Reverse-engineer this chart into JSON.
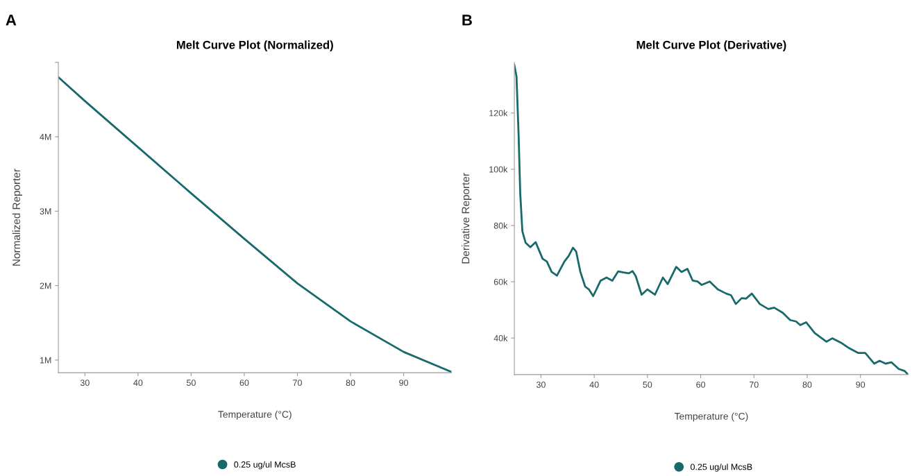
{
  "chart_data": [
    {
      "type": "line",
      "title": "Melt Curve Plot (Normalized)",
      "xlabel": "Temperature (°C)",
      "ylabel": "Normalized Reporter",
      "annotations": [
        "A"
      ],
      "xlim": [
        25,
        99
      ],
      "xticks": [
        30,
        40,
        50,
        60,
        70,
        80,
        90
      ],
      "ylim": [
        830000,
        5000000
      ],
      "yticks": [
        {
          "value": 1000000,
          "label": "1M"
        },
        {
          "value": 2000000,
          "label": "2M"
        },
        {
          "value": 3000000,
          "label": "3M"
        },
        {
          "value": 4000000,
          "label": "4M"
        },
        {
          "value": 5000000,
          "label": null
        }
      ],
      "grid": false,
      "legend": "bottom",
      "marker": "none",
      "line_style": "solid",
      "series": [
        {
          "name": "0.25 ug/ul McsB",
          "color": "#17696a",
          "x": [
            25,
            30,
            40,
            50,
            60,
            70,
            80,
            90,
            99
          ],
          "values": [
            4800000,
            4480000,
            3860000,
            3240000,
            2630000,
            2030000,
            1520000,
            1110000,
            840000
          ]
        }
      ]
    },
    {
      "type": "line",
      "title": "Melt Curve Plot (Derivative)",
      "xlabel": "Temperature (°C)",
      "ylabel": "Derivative Reporter",
      "annotations": [
        "B"
      ],
      "xlim": [
        25,
        99
      ],
      "xticks": [
        30,
        40,
        50,
        60,
        70,
        80,
        90
      ],
      "ylim": [
        27000,
        138000
      ],
      "yticks": [
        {
          "value": 40000,
          "label": "40k"
        },
        {
          "value": 60000,
          "label": "60k"
        },
        {
          "value": 80000,
          "label": "80k"
        },
        {
          "value": 100000,
          "label": "100k"
        },
        {
          "value": 120000,
          "label": "120k"
        }
      ],
      "grid": false,
      "legend": "bottom",
      "marker": "none",
      "line_style": "solid",
      "series": [
        {
          "name": "0.25 ug/ul McsB",
          "color": "#17696a",
          "x": [
            25,
            25.4,
            25.8,
            26.1,
            26.5,
            27.1,
            28.0,
            29.0,
            30.3,
            31.1,
            32.0,
            33.0,
            34.4,
            35.2,
            36.0,
            36.6,
            37.4,
            38.3,
            39.0,
            39.8,
            41.2,
            42.3,
            43.4,
            44.5,
            45.5,
            46.5,
            47.2,
            47.8,
            48.9,
            50.0,
            51.4,
            52.9,
            53.8,
            55.4,
            56.4,
            57.5,
            58.5,
            59.4,
            60.2,
            61.7,
            63.2,
            64.8,
            65.7,
            66.6,
            67.7,
            68.5,
            69.6,
            71.1,
            72.7,
            73.8,
            75.4,
            76.8,
            77.9,
            78.7,
            79.8,
            81.4,
            83.6,
            84.7,
            86.3,
            87.7,
            89.6,
            90.9,
            92.6,
            93.6,
            94.7,
            95.8,
            97.2,
            98.3,
            98.8
          ],
          "values": [
            137000,
            133000,
            112000,
            91500,
            78000,
            73900,
            72300,
            74100,
            68200,
            67200,
            63500,
            62200,
            67200,
            69200,
            72100,
            70800,
            63500,
            58300,
            57300,
            54900,
            60400,
            61500,
            60400,
            63700,
            63300,
            63000,
            63800,
            62000,
            55400,
            57300,
            55400,
            61500,
            59200,
            65300,
            63500,
            64600,
            60400,
            60100,
            58900,
            60100,
            57300,
            55800,
            55200,
            52100,
            54200,
            54000,
            55800,
            52100,
            50300,
            50800,
            49000,
            46400,
            45900,
            44600,
            45600,
            41800,
            38700,
            39900,
            38400,
            36600,
            34700,
            34700,
            30900,
            31900,
            30900,
            31400,
            29000,
            28300,
            27300
          ]
        }
      ]
    }
  ]
}
